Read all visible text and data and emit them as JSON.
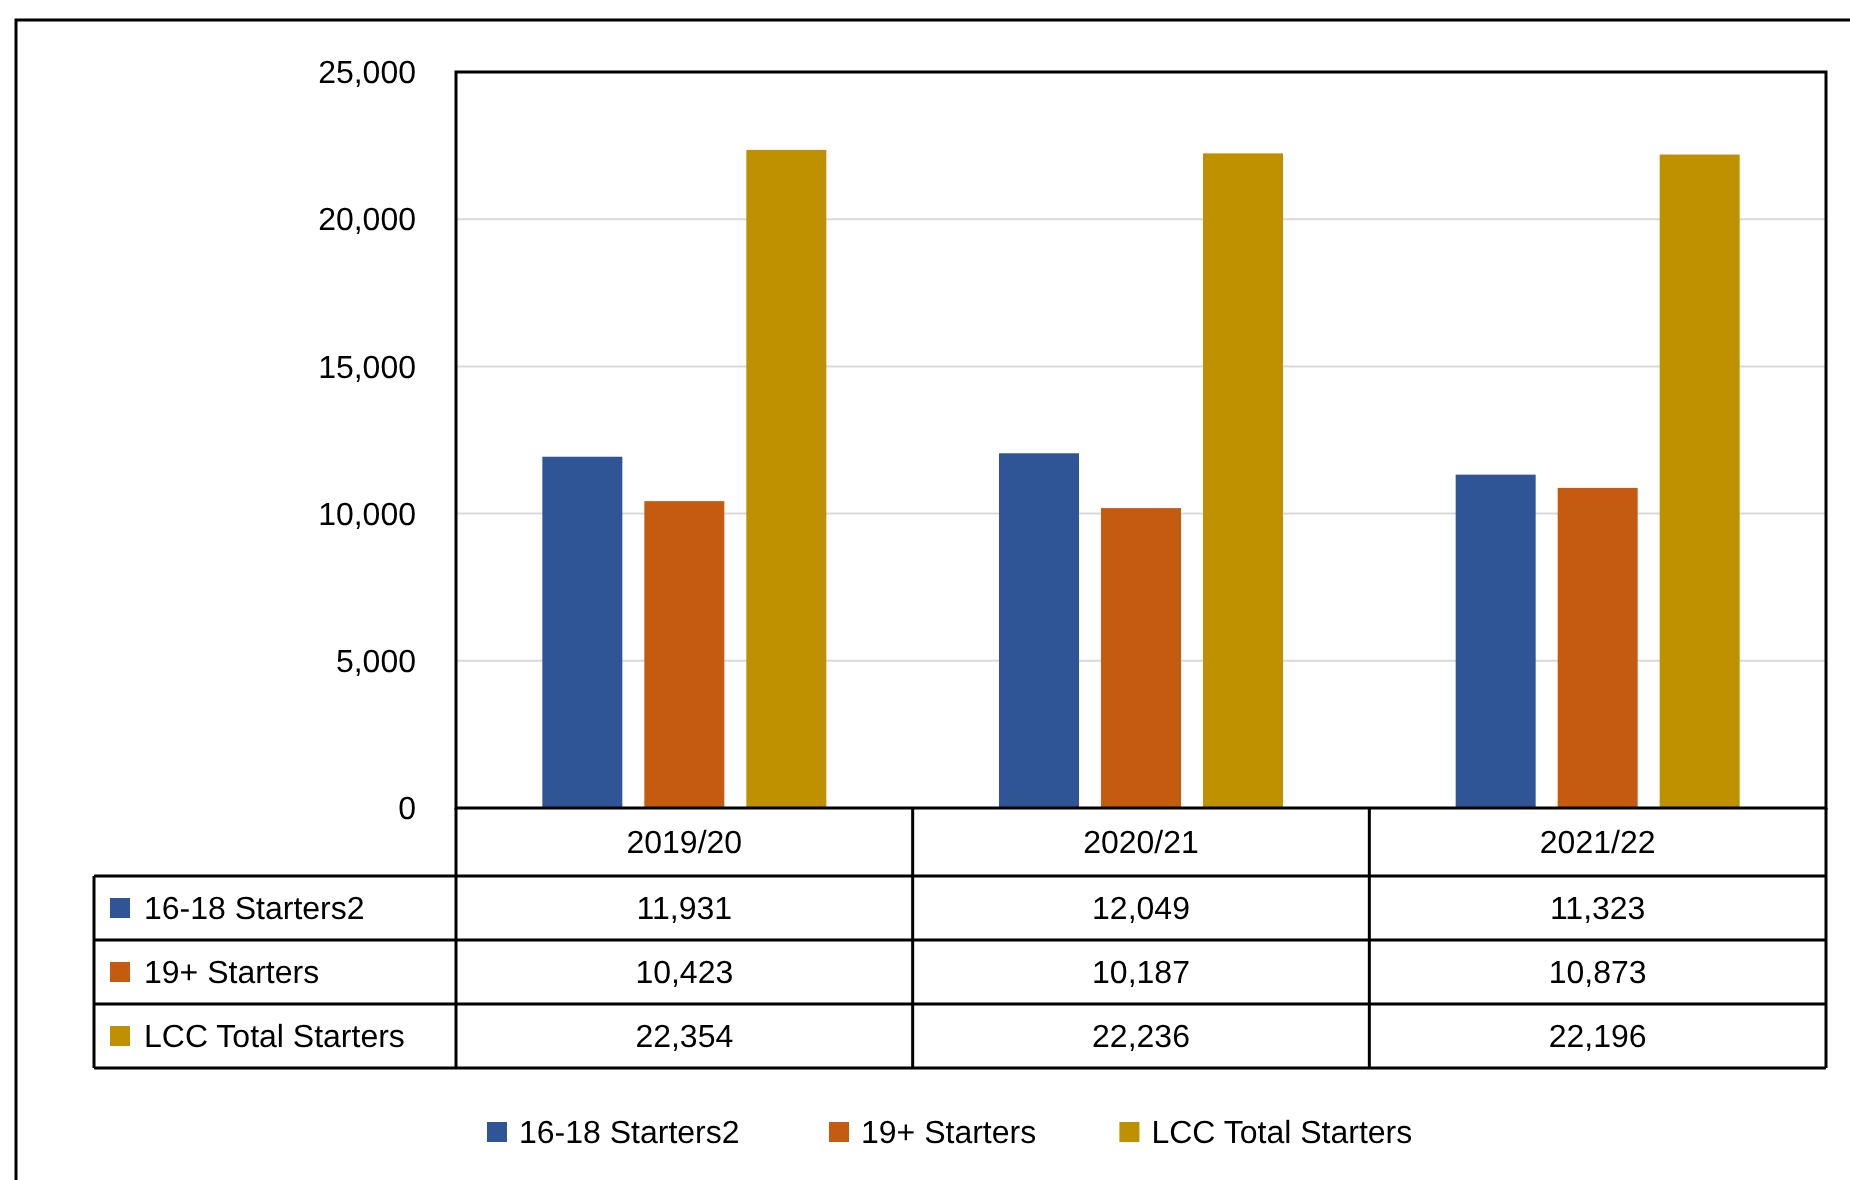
{
  "chart_data": {
    "type": "bar",
    "categories": [
      "2019/20",
      "2020/21",
      "2021/22"
    ],
    "series": [
      {
        "name": "16-18 Starters2",
        "color": "#2f5597",
        "values": [
          11931,
          12049,
          11323
        ],
        "value_labels": [
          "11,931",
          "12,049",
          "11,323"
        ]
      },
      {
        "name": "19+ Starters",
        "color": "#c55a11",
        "values": [
          10423,
          10187,
          10873
        ],
        "value_labels": [
          "10,423",
          "10,187",
          "10,873"
        ]
      },
      {
        "name": "LCC Total Starters",
        "color": "#bf9000",
        "values": [
          22354,
          22236,
          22196
        ],
        "value_labels": [
          "22,354",
          "22,236",
          "22,196"
        ]
      }
    ],
    "ylim": [
      0,
      25000
    ],
    "yticks": [
      0,
      {
        "value": 5000,
        "label": "5,000"
      },
      {
        "value": 10000,
        "label": "10,000"
      },
      {
        "value": 15000,
        "label": "15,000"
      },
      {
        "value": 20000,
        "label": "20,000"
      },
      {
        "value": 25000,
        "label": "25,000"
      }
    ],
    "grid": "y",
    "legend": "bottom"
  }
}
